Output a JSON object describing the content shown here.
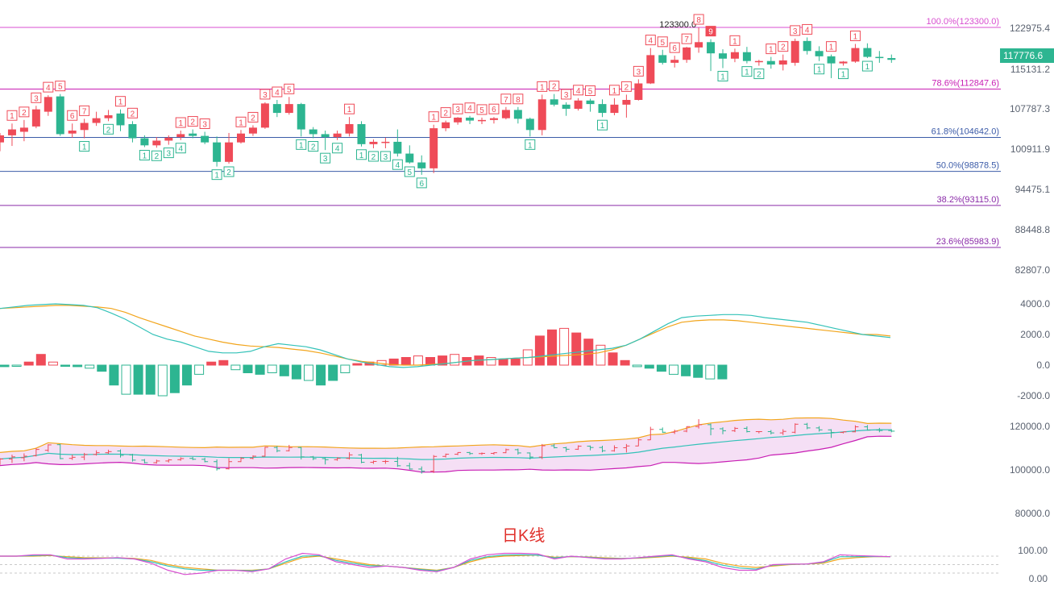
{
  "colors": {
    "up": "#ef4b58",
    "down": "#2db591",
    "ma_fast": "#33c2b8",
    "ma_slow": "#f2a51c",
    "bb_upper": "#f2a51c",
    "bb_lower": "#c81eb4",
    "bb_fill": "#f5dff5",
    "kdj_k": "#d84fd0",
    "kdj_d": "#f2a51c",
    "kdj_j": "#33c2b8"
  },
  "chart_data": [
    {
      "type": "candlestick",
      "name": "main",
      "y_ticks": [
        "122975.4",
        "115131.2",
        "107787.3",
        "100911.9",
        "94475.1",
        "88448.8",
        "82807.0"
      ],
      "last_price": "117776.6",
      "high_annotation": "123300.0",
      "fib_levels": [
        {
          "label": "100.0%(123300.0)",
          "value": 123300.0,
          "color": "#d84fd0"
        },
        {
          "label": "78.6%(112847.6)",
          "value": 112847.6,
          "color": "#c81eb4"
        },
        {
          "label": "61.8%(104642.0)",
          "value": 104642.0,
          "color": "#3b5ba8"
        },
        {
          "label": "50.0%(98878.5)",
          "value": 98878.5,
          "color": "#3b5ba8"
        },
        {
          "label": "38.2%(93115.0)",
          "value": 93115.0,
          "color": "#8a2aa8"
        },
        {
          "label": "23.6%(85983.9)",
          "value": 85983.9,
          "color": "#8a2aa8"
        }
      ],
      "candles": [
        [
          103800,
          105400,
          102300,
          105000
        ],
        [
          105000,
          107000,
          103200,
          106000
        ],
        [
          105600,
          107600,
          104000,
          106300
        ],
        [
          106500,
          110000,
          106200,
          109400
        ],
        [
          109000,
          111800,
          108300,
          111500
        ],
        [
          111600,
          112000,
          104900,
          105200
        ],
        [
          105300,
          107000,
          104600,
          105800
        ],
        [
          105900,
          107800,
          104500,
          107100
        ],
        [
          107100,
          109000,
          106600,
          107900
        ],
        [
          107900,
          109300,
          107400,
          108400
        ],
        [
          108700,
          109400,
          105700,
          106700
        ],
        [
          106900,
          107400,
          103800,
          104500
        ],
        [
          104500,
          105000,
          103000,
          103300
        ],
        [
          103300,
          104700,
          102900,
          104100
        ],
        [
          104100,
          105000,
          103400,
          104600
        ],
        [
          104700,
          105800,
          104200,
          105200
        ],
        [
          105300,
          106000,
          104500,
          104900
        ],
        [
          104900,
          105600,
          103500,
          103800
        ],
        [
          103800,
          104800,
          99700,
          100500
        ],
        [
          100500,
          105400,
          100200,
          103800
        ],
        [
          103800,
          105900,
          103600,
          105300
        ],
        [
          105300,
          106700,
          104900,
          106300
        ],
        [
          106300,
          110600,
          106100,
          110400
        ],
        [
          110300,
          111000,
          108100,
          108800
        ],
        [
          108800,
          111500,
          108500,
          110300
        ],
        [
          110300,
          110500,
          104800,
          106000
        ],
        [
          106000,
          106400,
          104500,
          105200
        ],
        [
          105200,
          105800,
          102500,
          104700
        ],
        [
          104700,
          105800,
          104200,
          105300
        ],
        [
          105300,
          108100,
          104800,
          106900
        ],
        [
          106900,
          107400,
          103100,
          103500
        ],
        [
          103500,
          104300,
          102800,
          103900
        ],
        [
          103900,
          104600,
          102800,
          103900
        ],
        [
          103900,
          106000,
          101400,
          101900
        ],
        [
          101900,
          103300,
          100200,
          100400
        ],
        [
          100400,
          101600,
          98300,
          99400
        ],
        [
          99400,
          106800,
          98600,
          106200
        ],
        [
          106200,
          107500,
          105700,
          107200
        ],
        [
          107200,
          108100,
          106800,
          108000
        ],
        [
          108000,
          108300,
          106900,
          107500
        ],
        [
          107500,
          108000,
          106900,
          107600
        ],
        [
          107600,
          108100,
          107000,
          107900
        ],
        [
          107900,
          109800,
          107700,
          109300
        ],
        [
          109300,
          109800,
          107000,
          107800
        ],
        [
          107800,
          108000,
          104800,
          105900
        ],
        [
          105900,
          111900,
          105000,
          111100
        ],
        [
          111100,
          112000,
          109900,
          110200
        ],
        [
          110200,
          110600,
          108300,
          109500
        ],
        [
          109500,
          111300,
          109200,
          110900
        ],
        [
          110900,
          111200,
          109000,
          110300
        ],
        [
          110300,
          111100,
          108100,
          108800
        ],
        [
          108800,
          111300,
          108400,
          110200
        ],
        [
          110200,
          111900,
          108000,
          111000
        ],
        [
          111000,
          114500,
          110900,
          113800
        ],
        [
          113800,
          119800,
          113700,
          118600
        ],
        [
          118600,
          119500,
          117000,
          117300
        ],
        [
          117300,
          118500,
          116500,
          117800
        ],
        [
          117800,
          120000,
          117300,
          119900
        ],
        [
          119900,
          123300,
          119000,
          120800
        ],
        [
          120800,
          121300,
          115900,
          118900
        ],
        [
          118900,
          119600,
          116400,
          118000
        ],
        [
          118000,
          119700,
          117400,
          119100
        ],
        [
          119100,
          120000,
          117200,
          117600
        ],
        [
          117600,
          117800,
          116800,
          117600
        ],
        [
          117600,
          118300,
          116300,
          117000
        ],
        [
          117000,
          118700,
          116000,
          117700
        ],
        [
          117300,
          121400,
          116800,
          121000
        ],
        [
          121000,
          121600,
          118700,
          119300
        ],
        [
          119300,
          120100,
          117600,
          118400
        ],
        [
          118400,
          118700,
          114700,
          117200
        ],
        [
          117200,
          117600,
          116800,
          117500
        ],
        [
          117500,
          120500,
          117300,
          119800
        ],
        [
          119800,
          120600,
          118100,
          118300
        ],
        [
          118300,
          119300,
          117300,
          118100
        ],
        [
          118100,
          118700,
          117300,
          117800
        ]
      ],
      "td_markers": [
        {
          "i": 1,
          "label": "1",
          "up": true
        },
        {
          "i": 2,
          "label": "2",
          "up": true
        },
        {
          "i": 3,
          "label": "3",
          "up": true
        },
        {
          "i": 4,
          "label": "4",
          "up": true
        },
        {
          "i": 5,
          "label": "5",
          "up": true
        },
        {
          "i": 6,
          "label": "6",
          "up": true
        },
        {
          "i": 7,
          "label": "7",
          "up": true
        },
        {
          "i": 10,
          "label": "1",
          "up": true
        },
        {
          "i": 11,
          "label": "2",
          "up": true
        },
        {
          "i": 7,
          "label": "1",
          "up": false
        },
        {
          "i": 9,
          "label": "2",
          "up": false
        },
        {
          "i": 15,
          "label": "1",
          "up": true
        },
        {
          "i": 16,
          "label": "2",
          "up": true
        },
        {
          "i": 17,
          "label": "3",
          "up": true
        },
        {
          "i": 12,
          "label": "1",
          "up": false
        },
        {
          "i": 13,
          "label": "2",
          "up": false
        },
        {
          "i": 14,
          "label": "3",
          "up": false
        },
        {
          "i": 15,
          "label": "4",
          "up": false
        },
        {
          "i": 18,
          "label": "1",
          "up": false
        },
        {
          "i": 19,
          "label": "2",
          "up": false
        },
        {
          "i": 20,
          "label": "1",
          "up": true
        },
        {
          "i": 21,
          "label": "2",
          "up": true
        },
        {
          "i": 22,
          "label": "3",
          "up": true
        },
        {
          "i": 23,
          "label": "4",
          "up": true
        },
        {
          "i": 24,
          "label": "5",
          "up": true
        },
        {
          "i": 25,
          "label": "1",
          "up": false
        },
        {
          "i": 26,
          "label": "2",
          "up": false
        },
        {
          "i": 27,
          "label": "3",
          "up": false
        },
        {
          "i": 28,
          "label": "4",
          "up": false
        },
        {
          "i": 29,
          "label": "1",
          "up": true
        },
        {
          "i": 30,
          "label": "1",
          "up": false
        },
        {
          "i": 31,
          "label": "2",
          "up": false
        },
        {
          "i": 32,
          "label": "3",
          "up": false
        },
        {
          "i": 33,
          "label": "4",
          "up": false
        },
        {
          "i": 34,
          "label": "5",
          "up": false
        },
        {
          "i": 35,
          "label": "6",
          "up": false
        },
        {
          "i": 36,
          "label": "1",
          "up": true
        },
        {
          "i": 37,
          "label": "2",
          "up": true
        },
        {
          "i": 38,
          "label": "3",
          "up": true
        },
        {
          "i": 39,
          "label": "4",
          "up": true
        },
        {
          "i": 40,
          "label": "5",
          "up": true
        },
        {
          "i": 41,
          "label": "6",
          "up": true
        },
        {
          "i": 42,
          "label": "7",
          "up": true
        },
        {
          "i": 43,
          "label": "8",
          "up": true
        },
        {
          "i": 44,
          "label": "1",
          "up": false
        },
        {
          "i": 45,
          "label": "1",
          "up": true
        },
        {
          "i": 46,
          "label": "2",
          "up": true
        },
        {
          "i": 47,
          "label": "3",
          "up": true
        },
        {
          "i": 48,
          "label": "4",
          "up": true
        },
        {
          "i": 49,
          "label": "5",
          "up": true
        },
        {
          "i": 50,
          "label": "1",
          "up": false
        },
        {
          "i": 51,
          "label": "1",
          "up": true
        },
        {
          "i": 52,
          "label": "2",
          "up": true
        },
        {
          "i": 53,
          "label": "3",
          "up": true
        },
        {
          "i": 54,
          "label": "4",
          "up": true
        },
        {
          "i": 55,
          "label": "5",
          "up": true
        },
        {
          "i": 56,
          "label": "6",
          "up": true
        },
        {
          "i": 57,
          "label": "7",
          "up": true
        },
        {
          "i": 58,
          "label": "8",
          "up": true
        },
        {
          "i": 59,
          "label": "9",
          "up": true
        },
        {
          "i": 61,
          "label": "1",
          "up": true
        },
        {
          "i": 60,
          "label": "1",
          "up": false
        },
        {
          "i": 62,
          "label": "1",
          "up": false
        },
        {
          "i": 63,
          "label": "2",
          "up": false
        },
        {
          "i": 64,
          "label": "1",
          "up": true
        },
        {
          "i": 65,
          "label": "2",
          "up": true
        },
        {
          "i": 66,
          "label": "3",
          "up": true
        },
        {
          "i": 67,
          "label": "4",
          "up": true
        },
        {
          "i": 68,
          "label": "1",
          "up": false
        },
        {
          "i": 69,
          "label": "1",
          "up": true
        },
        {
          "i": 70,
          "label": "1",
          "up": false
        },
        {
          "i": 71,
          "label": "1",
          "up": true
        },
        {
          "i": 72,
          "label": "1",
          "up": false
        }
      ]
    },
    {
      "type": "macd",
      "name": "macd",
      "y_ticks": [
        "4000.0",
        "2000.0",
        "0.0",
        "-2000.0"
      ],
      "ylim": [
        -2400,
        4300
      ],
      "dif": [
        3700,
        3800,
        3900,
        3950,
        4000,
        3950,
        3900,
        3750,
        3400,
        3000,
        2500,
        2000,
        1700,
        1500,
        1200,
        900,
        800,
        800,
        900,
        1200,
        1400,
        1300,
        1200,
        1000,
        700,
        400,
        200,
        50,
        -100,
        -150,
        -100,
        0,
        100,
        200,
        300,
        350,
        400,
        450,
        500,
        600,
        700,
        800,
        900,
        1000,
        1100,
        1300,
        1700,
        2200,
        2700,
        3100,
        3200,
        3250,
        3300,
        3300,
        3250,
        3100,
        3000,
        2900,
        2800,
        2600,
        2400,
        2200,
        2000,
        1900,
        1800
      ],
      "dea": [
        3700,
        3750,
        3800,
        3850,
        3900,
        3900,
        3850,
        3800,
        3700,
        3450,
        3100,
        2800,
        2500,
        2200,
        1900,
        1700,
        1500,
        1350,
        1250,
        1200,
        1150,
        1050,
        950,
        800,
        600,
        400,
        250,
        150,
        50,
        0,
        0,
        50,
        100,
        200,
        300,
        350,
        400,
        450,
        500,
        550,
        600,
        650,
        700,
        800,
        1000,
        1300,
        1700,
        2100,
        2500,
        2800,
        2900,
        2950,
        2950,
        2900,
        2800,
        2700,
        2600,
        2500,
        2400,
        2300,
        2200,
        2100,
        2000,
        2000,
        1900
      ],
      "hist": [
        -100,
        -50,
        200,
        700,
        200,
        -50,
        -100,
        -200,
        -400,
        -1300,
        -1900,
        -1900,
        -1900,
        -2000,
        -1800,
        -1300,
        -600,
        200,
        300,
        -300,
        -500,
        -600,
        -500,
        -700,
        -900,
        -1000,
        -1300,
        -1000,
        -500,
        100,
        200,
        300,
        400,
        500,
        600,
        500,
        600,
        700,
        500,
        600,
        500,
        400,
        400,
        1000,
        1900,
        2300,
        2400,
        2100,
        1700,
        1300,
        800,
        300,
        -100,
        -200,
        -400,
        -600,
        -700,
        -800,
        -900,
        -900
      ]
    },
    {
      "type": "bollinger",
      "name": "boll",
      "y_ticks": [
        "120000.0",
        "100000.0",
        "80000.0"
      ],
      "ylim": [
        75000,
        126000
      ]
    },
    {
      "type": "kdj",
      "name": "kdj",
      "y_ticks": [
        "100.00",
        "0.00"
      ],
      "ylim": [
        -10,
        120
      ],
      "caption": "日K线",
      "k": [
        80,
        80,
        85,
        85,
        70,
        70,
        72,
        75,
        70,
        55,
        30,
        15,
        20,
        30,
        30,
        25,
        35,
        70,
        90,
        85,
        60,
        50,
        40,
        45,
        40,
        30,
        25,
        40,
        70,
        85,
        90,
        90,
        88,
        70,
        80,
        75,
        70,
        70,
        75,
        80,
        85,
        70,
        60,
        40,
        30,
        30,
        50,
        52,
        52,
        60,
        85,
        82,
        80,
        78
      ],
      "d": [
        80,
        80,
        80,
        82,
        78,
        75,
        74,
        74,
        72,
        65,
        50,
        40,
        35,
        30,
        30,
        30,
        35,
        55,
        75,
        80,
        70,
        60,
        50,
        45,
        40,
        35,
        30,
        40,
        60,
        75,
        80,
        82,
        84,
        76,
        78,
        77,
        74,
        72,
        73,
        76,
        80,
        76,
        70,
        55,
        45,
        40,
        45,
        50,
        52,
        55,
        70,
        75,
        78,
        78
      ],
      "j": [
        80,
        80,
        82,
        84,
        75,
        72,
        73,
        73,
        70,
        60,
        45,
        35,
        30,
        30,
        30,
        28,
        35,
        60,
        80,
        82,
        65,
        55,
        46,
        45,
        40,
        33,
        28,
        40,
        65,
        78,
        84,
        85,
        84,
        74,
        79,
        76,
        72,
        71,
        74,
        78,
        82,
        73,
        64,
        48,
        38,
        34,
        48,
        51,
        52,
        58,
        78,
        78,
        79,
        78
      ]
    }
  ]
}
